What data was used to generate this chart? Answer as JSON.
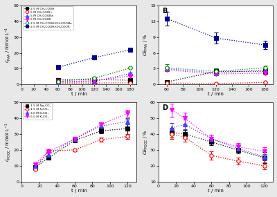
{
  "panel_A": {
    "title": "A",
    "xlabel": "t / min",
    "ylabel_key": "cPAA",
    "ylim": [
      0,
      50
    ],
    "xlim": [
      0,
      190
    ],
    "xticks": [
      0,
      20,
      40,
      60,
      80,
      100,
      120,
      140,
      160,
      180
    ],
    "yticks": [
      0,
      10,
      20,
      30,
      40,
      50
    ],
    "series": [
      {
        "label": "2.5 M CH₃COOH",
        "color": "#000000",
        "marker": "s",
        "filled": true,
        "times": [
          60,
          120,
          180
        ],
        "values": [
          3.0,
          3.2,
          2.8
        ],
        "yerr": [
          0.3,
          0.4,
          0.4
        ]
      },
      {
        "label": "5 M CH₃COOLi",
        "color": "#ff0000",
        "marker": "o",
        "filled": false,
        "times": [
          60,
          120,
          180
        ],
        "values": [
          1.0,
          1.0,
          1.2
        ],
        "yerr": [
          0.15,
          0.15,
          0.15
        ]
      },
      {
        "label": "5 M CH₃COONa",
        "color": "#4444ff",
        "marker": "^",
        "filled": true,
        "times": [
          60,
          120,
          180
        ],
        "values": [
          1.5,
          2.0,
          7.0
        ],
        "yerr": [
          0.2,
          0.2,
          0.6
        ]
      },
      {
        "label": "5 M CH₃COOK",
        "color": "#ff00ff",
        "marker": "v",
        "filled": true,
        "times": [
          60,
          120,
          180
        ],
        "values": [
          1.8,
          2.5,
          5.5
        ],
        "yerr": [
          0.2,
          0.3,
          0.5
        ]
      },
      {
        "label": "2.5 M CH₃COOH/CH₃COONa",
        "color": "#008800",
        "marker": "o",
        "filled": false,
        "times": [
          60,
          120,
          180
        ],
        "values": [
          2.0,
          4.0,
          10.5
        ],
        "yerr": [
          0.2,
          0.3,
          0.5
        ]
      },
      {
        "label": "2.5 M CH₃COOH/CH₃COOK",
        "color": "#000099",
        "marker": "s",
        "filled": true,
        "times": [
          60,
          120,
          180
        ],
        "values": [
          11.0,
          17.0,
          22.0
        ],
        "yerr": [
          0.6,
          1.0,
          1.0
        ]
      }
    ]
  },
  "panel_B": {
    "title": "B",
    "xlabel": "t / min",
    "ylabel_key": "cePAA",
    "ylim": [
      0,
      15
    ],
    "xlim": [
      50,
      190
    ],
    "xticks": [
      60,
      80,
      100,
      120,
      140,
      160,
      180
    ],
    "yticks": [
      0,
      3,
      6,
      9,
      12,
      15
    ],
    "series": [
      {
        "label": "2.5 M CH₃COOH",
        "color": "#000000",
        "marker": "s",
        "filled": true,
        "times": [
          60,
          120,
          180
        ],
        "values": [
          0.5,
          2.5,
          2.5
        ],
        "yerr": [
          0.4,
          0.6,
          0.5
        ]
      },
      {
        "label": "5 M CH₃COOLi",
        "color": "#ff0000",
        "marker": "o",
        "filled": false,
        "times": [
          60,
          120,
          180
        ],
        "values": [
          0.3,
          0.2,
          0.4
        ],
        "yerr": [
          0.1,
          0.1,
          0.1
        ]
      },
      {
        "label": "5 M CH₃COONa",
        "color": "#4444ff",
        "marker": "^",
        "filled": true,
        "times": [
          60,
          120,
          180
        ],
        "values": [
          3.0,
          2.2,
          2.8
        ],
        "yerr": [
          0.3,
          0.4,
          0.3
        ]
      },
      {
        "label": "5 M CH₃COOK",
        "color": "#ff00ff",
        "marker": "v",
        "filled": true,
        "times": [
          60,
          120,
          180
        ],
        "values": [
          2.8,
          2.0,
          2.2
        ],
        "yerr": [
          0.3,
          0.3,
          0.3
        ]
      },
      {
        "label": "2.5 M CH₃COOH/CH₃COONa",
        "color": "#008800",
        "marker": "o",
        "filled": false,
        "times": [
          60,
          120,
          180
        ],
        "values": [
          3.2,
          2.5,
          3.2
        ],
        "yerr": [
          0.6,
          0.5,
          0.4
        ]
      },
      {
        "label": "2.5 M CH₃COOH/CH₃COOK",
        "color": "#000099",
        "marker": "s",
        "filled": true,
        "times": [
          60,
          120,
          180
        ],
        "values": [
          12.5,
          8.8,
          7.5
        ],
        "yerr": [
          1.3,
          1.0,
          0.8
        ]
      }
    ]
  },
  "panel_C": {
    "title": "C",
    "xlabel": "t / min",
    "ylabel_key": "cPOOC",
    "ylim": [
      0,
      50
    ],
    "xlim": [
      0,
      130
    ],
    "xticks": [
      0,
      20,
      40,
      60,
      80,
      100,
      120
    ],
    "yticks": [
      0,
      10,
      20,
      30,
      40,
      50
    ],
    "series": [
      {
        "label": "1.5 M Na₂CO₃",
        "color": "#000000",
        "marker": "s",
        "filled": true,
        "times": [
          15,
          30,
          60,
          90,
          120
        ],
        "values": [
          9.0,
          15.0,
          26.0,
          32.0,
          33.5
        ],
        "yerr": [
          0.5,
          0.8,
          1.0,
          1.5,
          5.5
        ]
      },
      {
        "label": "1.5 M K₂CO₃",
        "color": "#ff0000",
        "marker": "o",
        "filled": false,
        "times": [
          15,
          30,
          60,
          90,
          120
        ],
        "values": [
          8.0,
          19.5,
          20.0,
          26.5,
          28.5
        ],
        "yerr": [
          0.5,
          0.8,
          1.0,
          1.2,
          1.5
        ]
      },
      {
        "label": "3.0 M K₂CO₃",
        "color": "#4444ff",
        "marker": "^",
        "filled": true,
        "times": [
          15,
          30,
          60,
          90,
          120
        ],
        "values": [
          10.0,
          17.0,
          27.0,
          35.0,
          38.0
        ],
        "yerr": [
          0.5,
          1.0,
          1.2,
          1.5,
          2.0
        ]
      },
      {
        "label": "5.0 M K₂CO₃",
        "color": "#ff00ff",
        "marker": "v",
        "filled": true,
        "times": [
          15,
          30,
          60,
          90,
          120
        ],
        "values": [
          11.0,
          19.0,
          27.0,
          36.0,
          43.0
        ],
        "yerr": [
          0.5,
          1.0,
          1.2,
          1.5,
          2.0
        ]
      }
    ]
  },
  "panel_D": {
    "title": "D",
    "xlabel": "t / min",
    "ylabel_key": "cePOOC",
    "ylim": [
      10,
      60
    ],
    "xlim": [
      0,
      130
    ],
    "xticks": [
      0,
      20,
      40,
      60,
      80,
      100,
      120
    ],
    "yticks": [
      10,
      20,
      30,
      40,
      50,
      60
    ],
    "series": [
      {
        "label": "1.5 M Na₂CO₃",
        "color": "#000000",
        "marker": "s",
        "filled": true,
        "times": [
          15,
          30,
          60,
          90,
          120
        ],
        "values": [
          41.0,
          40.0,
          35.0,
          30.0,
          25.0
        ],
        "yerr": [
          3.0,
          2.5,
          2.0,
          2.0,
          3.5
        ]
      },
      {
        "label": "1.5 M K₂CO₃",
        "color": "#ff0000",
        "marker": "o",
        "filled": false,
        "times": [
          15,
          30,
          60,
          90,
          120
        ],
        "values": [
          40.0,
          38.0,
          26.5,
          23.0,
          20.0
        ],
        "yerr": [
          3.0,
          3.0,
          2.5,
          2.0,
          2.0
        ]
      },
      {
        "label": "3.0 M K₂CO₃",
        "color": "#4444ff",
        "marker": "^",
        "filled": true,
        "times": [
          15,
          30,
          60,
          90,
          120
        ],
        "values": [
          44.0,
          46.0,
          37.0,
          31.0,
          25.5
        ],
        "yerr": [
          3.0,
          3.0,
          2.5,
          2.0,
          2.0
        ]
      },
      {
        "label": "5.0 M K₂CO₃",
        "color": "#ff00ff",
        "marker": "v",
        "filled": true,
        "times": [
          15,
          30,
          60,
          90,
          120
        ],
        "values": [
          55.0,
          50.0,
          37.0,
          32.0,
          29.0
        ],
        "yerr": [
          4.0,
          3.5,
          2.5,
          2.5,
          2.5
        ]
      }
    ]
  },
  "legend_A_markers": [
    "s",
    "o",
    "^",
    "v",
    "o",
    "s"
  ],
  "legend_A_filled": [
    true,
    false,
    true,
    true,
    false,
    true
  ],
  "legend_A_colors": [
    "#000000",
    "#ff0000",
    "#4444ff",
    "#ff00ff",
    "#008800",
    "#000099"
  ],
  "legend_A_labels": [
    "2.5 M CH₃COOH",
    "5 M CH₃COOLi",
    "5 M CH₃COONa",
    "5 M CH₃COOK",
    "2.5 M CH₃COOH/CH₃COONa",
    "2.5 M CH₃COOH/CH₃COOK"
  ],
  "legend_C_markers": [
    "s",
    "o",
    "^",
    "v"
  ],
  "legend_C_filled": [
    true,
    false,
    true,
    true
  ],
  "legend_C_colors": [
    "#000000",
    "#ff0000",
    "#4444ff",
    "#ff00ff"
  ],
  "legend_C_labels": [
    "1.5 M Na₂CO₃",
    "1.5 M K₂CO₃",
    "3.0 M K₂CO₃",
    "5.0 M K₂CO₃"
  ],
  "bg_color": "#ffffff",
  "fig_bg": "#e8e8e8"
}
